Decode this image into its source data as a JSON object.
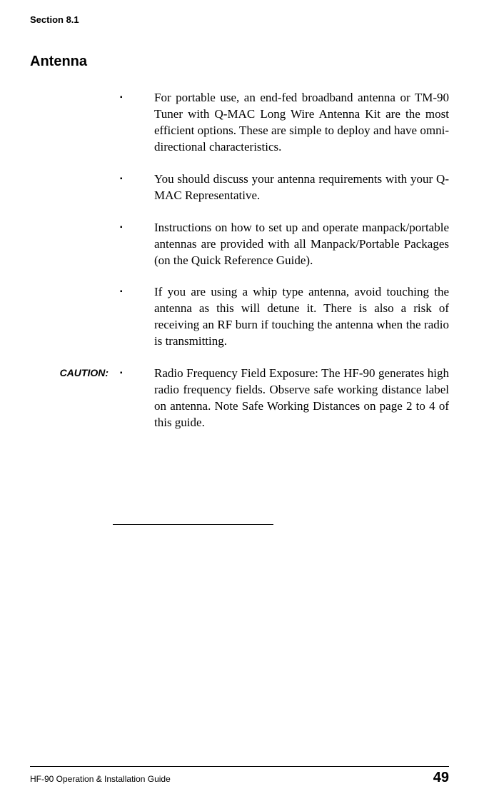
{
  "section_label": "Section 8.1",
  "heading": "Antenna",
  "bullets": [
    {
      "margin": "",
      "text": "For portable use, an end-fed broadband antenna or TM-90 Tuner with Q-MAC Long Wire Antenna Kit are the most efficient options.  These are simple to deploy and have omni-directional characteristics."
    },
    {
      "margin": "",
      "text": "You should discuss your antenna requirements with your Q-MAC Representative."
    },
    {
      "margin": "",
      "text": "Instructions on how to set up and operate manpack/portable antennas are provided with all Manpack/Portable Packages (on the Quick Reference Guide)."
    },
    {
      "margin": "",
      "text": "If you are using a whip type antenna, avoid touching the antenna as this will detune it. There is also a risk of receiving an RF burn if touching the antenna when the radio is transmitting."
    },
    {
      "margin": "CAUTION:",
      "text": "Radio Frequency Field Exposure:  The HF-90 generates high radio frequency fields.  Observe safe working distance label on antenna.  Note Safe Working Distances on page 2 to 4 of this guide."
    }
  ],
  "bullet_glyph": "▪",
  "footer_text": "HF-90 Operation & Installation Guide",
  "page_number": "49"
}
